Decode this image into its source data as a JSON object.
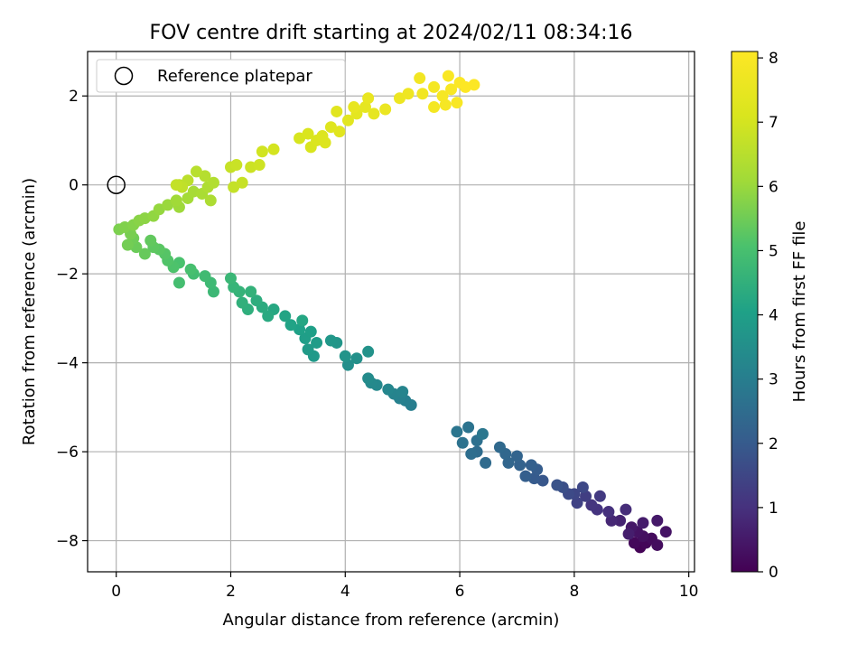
{
  "chart_data": {
    "type": "scatter",
    "title": "FOV centre drift starting at 2024/02/11 08:34:16",
    "xlabel": "Angular distance from reference (arcmin)",
    "ylabel": "Rotation from reference (arcmin)",
    "xlim": [
      -0.5,
      10.1
    ],
    "ylim": [
      -8.7,
      3.0
    ],
    "xticks": [
      0,
      2,
      4,
      6,
      8,
      10
    ],
    "yticks": [
      -8,
      -6,
      -4,
      -2,
      0,
      2
    ],
    "grid": true,
    "legend": {
      "placement": "top-left",
      "entries": [
        "Reference platepar"
      ]
    },
    "reference_point": {
      "x": 0,
      "y": 0
    },
    "colorbar": {
      "label": "Hours from first FF file",
      "colormap": "viridis",
      "range": [
        0,
        8.1
      ],
      "ticks": [
        0,
        1,
        2,
        3,
        4,
        5,
        6,
        7,
        8
      ]
    },
    "series": [
      {
        "points": [
          [
            9.15,
            -8.15,
            0.05
          ],
          [
            9.25,
            -8.05,
            0.1
          ],
          [
            9.05,
            -8.05,
            0.15
          ],
          [
            9.35,
            -7.95,
            0.2
          ],
          [
            9.45,
            -8.1,
            0.25
          ],
          [
            9.2,
            -7.9,
            0.3
          ],
          [
            9.1,
            -7.8,
            0.35
          ],
          [
            9.6,
            -7.8,
            0.4
          ],
          [
            9.0,
            -7.7,
            0.45
          ],
          [
            9.45,
            -7.55,
            0.5
          ],
          [
            9.2,
            -7.6,
            0.55
          ],
          [
            8.95,
            -7.85,
            0.6
          ],
          [
            8.8,
            -7.55,
            0.7
          ],
          [
            8.65,
            -7.55,
            0.8
          ],
          [
            8.9,
            -7.3,
            0.9
          ],
          [
            8.6,
            -7.35,
            1.0
          ],
          [
            8.4,
            -7.3,
            1.05
          ],
          [
            8.3,
            -7.2,
            1.1
          ],
          [
            8.45,
            -7.0,
            1.2
          ],
          [
            8.2,
            -7.0,
            1.3
          ],
          [
            8.05,
            -7.15,
            1.4
          ],
          [
            8.0,
            -6.95,
            1.5
          ],
          [
            8.15,
            -6.8,
            1.55
          ],
          [
            7.9,
            -6.95,
            1.6
          ],
          [
            7.8,
            -6.8,
            1.7
          ],
          [
            7.7,
            -6.75,
            1.8
          ],
          [
            7.45,
            -6.65,
            1.9
          ],
          [
            7.3,
            -6.6,
            2.0
          ],
          [
            7.35,
            -6.4,
            2.05
          ],
          [
            7.15,
            -6.55,
            2.1
          ],
          [
            7.25,
            -6.3,
            2.15
          ],
          [
            7.05,
            -6.3,
            2.2
          ],
          [
            7.0,
            -6.1,
            2.25
          ],
          [
            6.85,
            -6.25,
            2.3
          ],
          [
            6.8,
            -6.05,
            2.35
          ],
          [
            6.7,
            -5.9,
            2.4
          ],
          [
            6.45,
            -6.25,
            2.45
          ],
          [
            6.3,
            -6.0,
            2.5
          ],
          [
            6.2,
            -6.05,
            2.55
          ],
          [
            6.3,
            -5.75,
            2.6
          ],
          [
            6.05,
            -5.8,
            2.65
          ],
          [
            6.15,
            -5.45,
            2.7
          ],
          [
            5.95,
            -5.55,
            2.75
          ],
          [
            6.4,
            -5.6,
            2.8
          ],
          [
            5.15,
            -4.95,
            3.0
          ],
          [
            5.05,
            -4.85,
            3.05
          ],
          [
            4.95,
            -4.8,
            3.1
          ],
          [
            4.85,
            -4.7,
            3.15
          ],
          [
            5.0,
            -4.65,
            3.2
          ],
          [
            4.75,
            -4.6,
            3.25
          ],
          [
            4.55,
            -4.5,
            3.3
          ],
          [
            4.45,
            -4.45,
            3.35
          ],
          [
            4.4,
            -4.35,
            3.4
          ],
          [
            4.05,
            -4.05,
            3.5
          ],
          [
            4.2,
            -3.9,
            3.55
          ],
          [
            4.4,
            -3.75,
            3.6
          ],
          [
            4.0,
            -3.85,
            3.65
          ],
          [
            3.85,
            -3.55,
            3.7
          ],
          [
            3.75,
            -3.5,
            3.75
          ],
          [
            3.45,
            -3.85,
            3.8
          ],
          [
            3.35,
            -3.7,
            3.85
          ],
          [
            3.5,
            -3.55,
            3.9
          ],
          [
            3.3,
            -3.45,
            3.95
          ],
          [
            3.4,
            -3.3,
            4.0
          ],
          [
            3.2,
            -3.25,
            4.05
          ],
          [
            3.05,
            -3.15,
            4.1
          ],
          [
            2.95,
            -2.95,
            4.15
          ],
          [
            3.25,
            -3.05,
            4.2
          ],
          [
            2.75,
            -2.8,
            4.25
          ],
          [
            2.65,
            -2.95,
            4.3
          ],
          [
            2.55,
            -2.75,
            4.35
          ],
          [
            2.45,
            -2.6,
            4.4
          ],
          [
            2.3,
            -2.8,
            4.45
          ],
          [
            2.2,
            -2.65,
            4.5
          ],
          [
            2.35,
            -2.4,
            4.55
          ],
          [
            2.15,
            -2.4,
            4.6
          ],
          [
            2.05,
            -2.3,
            4.65
          ],
          [
            2.0,
            -2.1,
            4.7
          ],
          [
            1.7,
            -2.4,
            4.75
          ],
          [
            1.65,
            -2.2,
            4.8
          ],
          [
            1.55,
            -2.05,
            4.85
          ],
          [
            1.35,
            -2.0,
            4.9
          ],
          [
            1.1,
            -2.2,
            4.95
          ],
          [
            1.3,
            -1.9,
            5.0
          ],
          [
            1.1,
            -1.75,
            5.05
          ],
          [
            1.0,
            -1.85,
            5.1
          ],
          [
            0.9,
            -1.7,
            5.15
          ],
          [
            0.85,
            -1.55,
            5.2
          ],
          [
            0.75,
            -1.45,
            5.25
          ],
          [
            0.65,
            -1.4,
            5.3
          ],
          [
            0.6,
            -1.25,
            5.35
          ],
          [
            0.5,
            -1.55,
            5.4
          ],
          [
            0.35,
            -1.4,
            5.45
          ],
          [
            0.3,
            -1.2,
            5.5
          ],
          [
            0.2,
            -1.35,
            5.55
          ],
          [
            0.25,
            -1.1,
            5.6
          ],
          [
            0.05,
            -1.0,
            5.65
          ],
          [
            0.15,
            -0.95,
            5.7
          ],
          [
            0.3,
            -0.9,
            5.75
          ],
          [
            0.4,
            -0.8,
            5.8
          ],
          [
            0.5,
            -0.75,
            5.85
          ],
          [
            0.65,
            -0.7,
            5.9
          ],
          [
            0.75,
            -0.55,
            5.95
          ],
          [
            0.9,
            -0.45,
            6.0
          ],
          [
            1.1,
            -0.5,
            6.05
          ],
          [
            1.05,
            -0.35,
            6.1
          ],
          [
            1.25,
            -0.3,
            6.15
          ],
          [
            1.35,
            -0.15,
            6.2
          ],
          [
            1.5,
            -0.2,
            6.25
          ],
          [
            1.65,
            -0.35,
            6.3
          ],
          [
            1.6,
            -0.05,
            6.35
          ],
          [
            1.7,
            0.05,
            6.4
          ],
          [
            1.55,
            0.2,
            6.45
          ],
          [
            1.4,
            0.3,
            6.5
          ],
          [
            1.25,
            0.1,
            6.55
          ],
          [
            1.1,
            0.0,
            6.6
          ],
          [
            1.15,
            -0.05,
            6.65
          ],
          [
            1.05,
            0.0,
            6.7
          ],
          [
            2.0,
            0.4,
            6.75
          ],
          [
            2.1,
            0.45,
            6.8
          ],
          [
            2.35,
            0.4,
            6.85
          ],
          [
            2.5,
            0.45,
            6.9
          ],
          [
            2.55,
            0.75,
            6.95
          ],
          [
            2.75,
            0.8,
            7.0
          ],
          [
            2.2,
            0.05,
            6.75
          ],
          [
            2.05,
            -0.05,
            6.72
          ],
          [
            3.2,
            1.05,
            7.05
          ],
          [
            3.4,
            0.85,
            7.1
          ],
          [
            3.5,
            1.0,
            7.15
          ],
          [
            3.65,
            0.95,
            7.2
          ],
          [
            3.75,
            1.3,
            7.25
          ],
          [
            3.9,
            1.2,
            7.3
          ],
          [
            4.05,
            1.45,
            7.35
          ],
          [
            4.2,
            1.6,
            7.4
          ],
          [
            4.35,
            1.75,
            7.45
          ],
          [
            4.15,
            1.75,
            7.5
          ],
          [
            4.4,
            1.95,
            7.55
          ],
          [
            4.7,
            1.7,
            7.6
          ],
          [
            4.95,
            1.95,
            7.65
          ],
          [
            5.1,
            2.05,
            7.7
          ],
          [
            5.35,
            2.05,
            7.75
          ],
          [
            5.3,
            2.4,
            7.8
          ],
          [
            5.55,
            2.2,
            7.85
          ],
          [
            5.7,
            2.0,
            7.9
          ],
          [
            5.85,
            2.15,
            7.95
          ],
          [
            5.8,
            2.45,
            8.0
          ],
          [
            6.0,
            2.3,
            8.05
          ],
          [
            6.1,
            2.2,
            8.1
          ],
          [
            6.25,
            2.25,
            8.08
          ],
          [
            5.95,
            1.85,
            7.95
          ],
          [
            5.55,
            1.75,
            7.85
          ],
          [
            3.6,
            1.1,
            7.2
          ],
          [
            3.35,
            1.15,
            7.12
          ],
          [
            3.85,
            1.65,
            7.3
          ],
          [
            4.5,
            1.6,
            7.45
          ],
          [
            5.75,
            1.8,
            7.9
          ]
        ]
      }
    ]
  }
}
